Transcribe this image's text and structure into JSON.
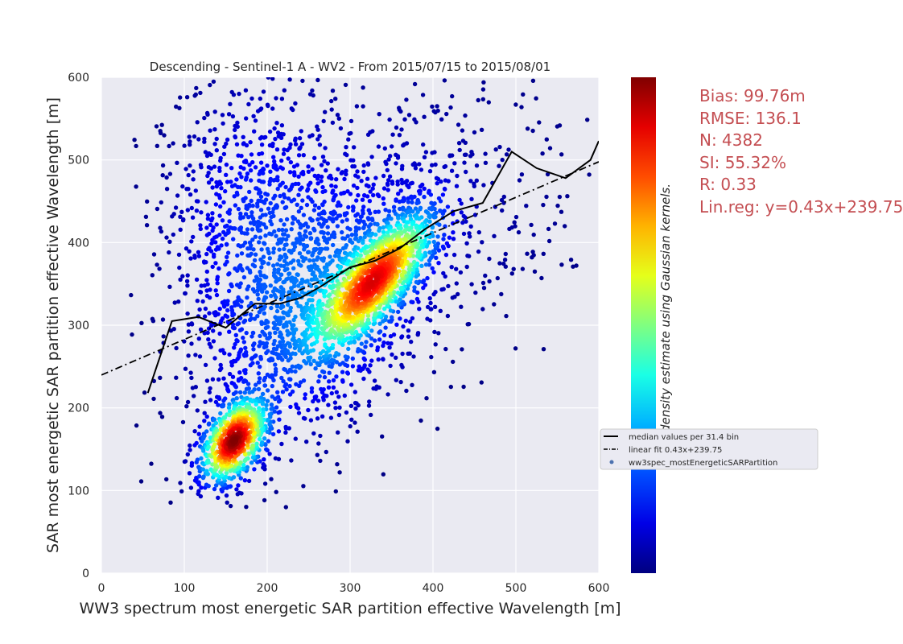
{
  "chart_data": {
    "type": "scatter",
    "title": "Descending - Sentinel-1 A - WV2 - From 2015/07/15 to 2015/08/01",
    "xlabel": "WW3 spectrum most energetic SAR partition effective Wavelength [m]",
    "ylabel": "SAR most energetic SAR partition effective Wavelength [m]",
    "xlim": [
      0,
      600
    ],
    "ylim": [
      0,
      600
    ],
    "xticks": [
      "0",
      "100",
      "200",
      "300",
      "400",
      "500",
      "600"
    ],
    "yticks": [
      "0",
      "100",
      "200",
      "300",
      "400",
      "500",
      "600"
    ],
    "grid": true,
    "colorbar_label": "point density estimate using Gaussian kernels.",
    "colormap": "jet",
    "background": "#eaeaf2",
    "median_curve": {
      "name": "median values per 31.4 bin",
      "color": "#000000",
      "x": [
        56,
        85,
        117,
        150,
        185,
        215,
        240,
        265,
        300,
        330,
        360,
        390,
        425,
        460,
        495,
        525,
        560,
        590,
        600
      ],
      "y": [
        218,
        305,
        310,
        297,
        326,
        326,
        333,
        347,
        370,
        378,
        393,
        416,
        438,
        448,
        510,
        490,
        478,
        500,
        523
      ]
    },
    "linear_fit": {
      "name": "linear fit 0.43x+239.75",
      "slope": 0.43,
      "intercept": 239.75,
      "color": "#000000"
    },
    "scatter_series": {
      "name": "ww3spec_mostEnergeticSARPartition",
      "n": 4382,
      "clusters": [
        {
          "cx": 160,
          "cy": 160,
          "sx": 22,
          "sy": 28,
          "rho": 0.45,
          "n": 700
        },
        {
          "cx": 330,
          "cy": 355,
          "sx": 40,
          "sy": 45,
          "rho": 0.75,
          "n": 1200
        },
        {
          "cx": 260,
          "cy": 320,
          "sx": 75,
          "sy": 90,
          "rho": 0.35,
          "n": 1300
        },
        {
          "cx": 180,
          "cy": 430,
          "sx": 55,
          "sy": 95,
          "rho": 0.0,
          "n": 600
        },
        {
          "cx": 330,
          "cy": 440,
          "sx": 140,
          "sy": 100,
          "rho": 0.1,
          "n": 582
        }
      ]
    },
    "legend": {
      "placement": "right",
      "entries": [
        "median values per 31.4 bin",
        "linear fit 0.43x+239.75",
        "ww3spec_mostEnergeticSARPartition"
      ]
    },
    "stats": [
      "Bias: 99.76m",
      "RMSE: 136.1",
      "N: 4382",
      "SI: 55.32%",
      "R: 0.33",
      "Lin.reg: y=0.43x+239.75"
    ]
  }
}
